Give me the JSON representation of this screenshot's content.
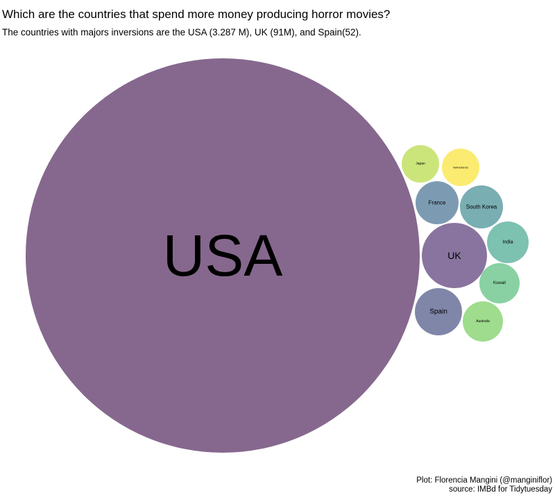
{
  "title": "Which are the countries that spend more money producing horror movies?",
  "subtitle": "The countries with majors inversions are the USA (3.287 M), UK (91M), and Spain(52).",
  "caption_line1": "Plot: Florencia Mangini (@manginiflor)",
  "caption_line2": "source: IMBd for Tidytuesday",
  "chart_data": {
    "type": "circle-packing",
    "value_unit": "M",
    "items": [
      {
        "label": "USA",
        "value": 3287,
        "color": "#86688e"
      },
      {
        "label": "UK",
        "value": 91,
        "color": "#89749f"
      },
      {
        "label": "Spain",
        "value": 52,
        "color": "#7f86a8"
      },
      {
        "label": "France",
        "value": 45,
        "color": "#7c9bb2"
      },
      {
        "label": "South Korea",
        "value": 43,
        "color": "#79aeb2"
      },
      {
        "label": "India",
        "value": 40,
        "color": "#7dc1b1"
      },
      {
        "label": "Kuwait",
        "value": 37,
        "color": "#89d1a2"
      },
      {
        "label": "Australia",
        "value": 36,
        "color": "#9fdc8d"
      },
      {
        "label": "Japan",
        "value": 34,
        "color": "#cbe57b"
      },
      {
        "label": "Netherlands",
        "value": 33,
        "color": "#fbeb70"
      }
    ]
  }
}
